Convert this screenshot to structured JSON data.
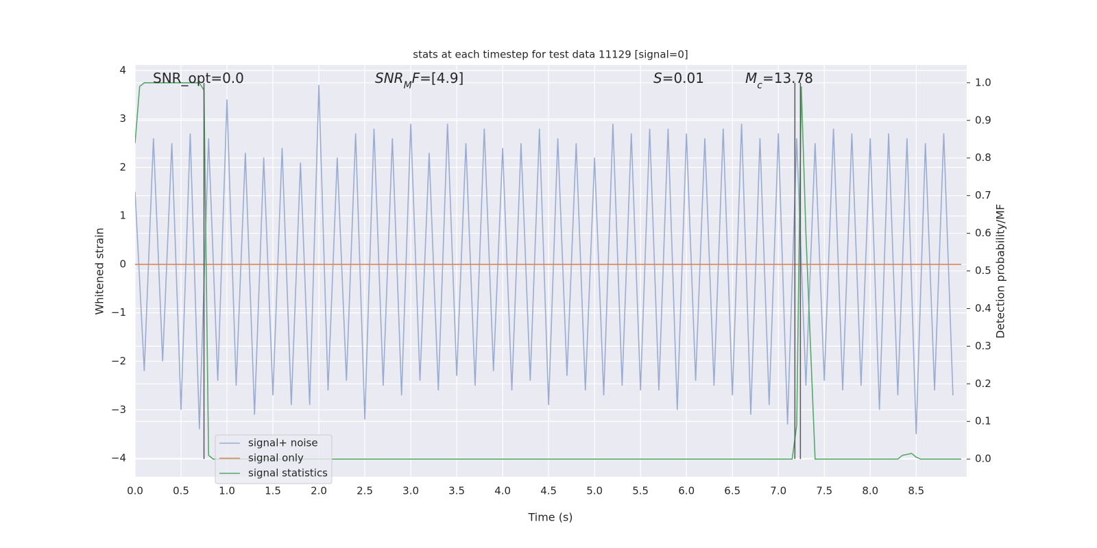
{
  "chart_data": {
    "type": "line",
    "title": "stats at each timestep for test data 11129 [signal=0]",
    "xlabel": "Time (s)",
    "ylabel": "Whitened strain",
    "y2label": "Detection probability/MF",
    "xlim": [
      0,
      9.05
    ],
    "ylim": [
      -4.38,
      4.11
    ],
    "y2lim": [
      -0.047,
      1.047
    ],
    "xticks": [
      {
        "value": 0,
        "label": "0.0"
      },
      0.5,
      {
        "value": 1,
        "label": "1.0"
      },
      1.5,
      {
        "value": 2,
        "label": "2.0"
      },
      2.5,
      {
        "value": 3,
        "label": "3.0"
      },
      3.5,
      {
        "value": 4,
        "label": "4.0"
      },
      4.5,
      {
        "value": 5,
        "label": "5.0"
      },
      5.5,
      {
        "value": 6,
        "label": "6.0"
      },
      6.5,
      {
        "value": 7,
        "label": "7.0"
      },
      7.5,
      {
        "value": 8,
        "label": "8.0"
      },
      8.5
    ],
    "yticks": [
      {
        "value": -4,
        "label": "−4"
      },
      {
        "value": -3,
        "label": "−3"
      },
      {
        "value": -2,
        "label": "−2"
      },
      {
        "value": -1,
        "label": "−1"
      },
      0,
      1,
      2,
      3,
      4
    ],
    "y2ticks": [
      {
        "value": 0,
        "label": "0.0"
      },
      0.1,
      0.2,
      0.3,
      0.4,
      0.5,
      0.6,
      0.7,
      0.8,
      0.9,
      {
        "value": 1,
        "label": "1.0"
      }
    ],
    "grid": true,
    "legend": "lower left",
    "series": [
      {
        "name": "signal+ noise",
        "color": "#9aacd1",
        "x": [
          0,
          0.1,
          0.2,
          0.3,
          0.4,
          0.5,
          0.6,
          0.7,
          0.8,
          0.9,
          1,
          1.1,
          1.2,
          1.3,
          1.4,
          1.5,
          1.6,
          1.7,
          1.8,
          1.9,
          2,
          2.1,
          2.2,
          2.3,
          2.4,
          2.5,
          2.6,
          2.7,
          2.8,
          2.9,
          3,
          3.1,
          3.2,
          3.3,
          3.4,
          3.5,
          3.6,
          3.7,
          3.8,
          3.9,
          4,
          4.1,
          4.2,
          4.3,
          4.4,
          4.5,
          4.6,
          4.7,
          4.8,
          4.9,
          5,
          5.1,
          5.2,
          5.3,
          5.4,
          5.5,
          5.6,
          5.7,
          5.8,
          5.9,
          6,
          6.1,
          6.2,
          6.3,
          6.4,
          6.5,
          6.6,
          6.7,
          6.8,
          6.9,
          7,
          7.1,
          7.2,
          7.3,
          7.4,
          7.5,
          7.6,
          7.7,
          7.8,
          7.9,
          8,
          8.1,
          8.2,
          8.3,
          8.4,
          8.5,
          8.6,
          8.7,
          8.8,
          8.9
        ],
        "values": [
          1.5,
          -2.2,
          2.6,
          -2,
          2.5,
          -3,
          2.7,
          -3.4,
          2.6,
          -2.4,
          3.4,
          -2.5,
          2.3,
          -3.1,
          2.2,
          -2.7,
          2.4,
          -2.9,
          2.1,
          -2.9,
          3.7,
          -2.6,
          2.2,
          -2.4,
          2.7,
          -3.2,
          2.8,
          -2.5,
          2.6,
          -2.7,
          2.9,
          -2.4,
          2.3,
          -2.6,
          2.9,
          -2.3,
          2.5,
          -2.5,
          2.8,
          -2.2,
          2.4,
          -2.6,
          2.5,
          -2.4,
          2.8,
          -2.9,
          2.6,
          -2.3,
          2.5,
          -2.6,
          2.2,
          -2.7,
          2.9,
          -2.5,
          2.7,
          -2.6,
          2.8,
          -2.6,
          2.8,
          -3,
          2.7,
          -2.4,
          2.6,
          -2.5,
          2.8,
          -2.7,
          2.9,
          -3.1,
          2.6,
          -2.9,
          2.7,
          -3.3,
          2.6,
          -2.5,
          2.5,
          -2.4,
          2.8,
          -2.6,
          2.7,
          -2.5,
          2.6,
          -3,
          2.7,
          -2.7,
          2.6,
          -3.5,
          2.5,
          -2.6,
          2.7,
          -2.7
        ]
      },
      {
        "name": "signal only",
        "color": "#dd8452",
        "x": [
          0,
          8.99
        ],
        "values": [
          0,
          0
        ]
      },
      {
        "name": "signal statistics",
        "color": "#55a868",
        "axis": "y2",
        "x": [
          0,
          0.05,
          0.1,
          0.6,
          0.7,
          0.75,
          0.8,
          0.85,
          7.15,
          7.2,
          7.25,
          7.3,
          7.4,
          8.3,
          8.35,
          8.45,
          8.5,
          8.55,
          8.99
        ],
        "values": [
          0.84,
          0.99,
          1.0,
          1.0,
          1.0,
          0.98,
          0.01,
          0.0,
          0.0,
          0.09,
          0.99,
          0.6,
          0.0,
          0.0,
          0.01,
          0.015,
          0.005,
          0.0,
          0.0
        ]
      }
    ],
    "vlines": {
      "x": [
        0.75,
        7.18,
        7.24
      ],
      "ymin": 0,
      "ymax": 1,
      "axis": "y2",
      "color": "#555555"
    },
    "annotations": [
      {
        "parts": [
          {
            "text": "SNR_opt=0.0",
            "style": "normal"
          }
        ]
      },
      {
        "parts": [
          {
            "text": "SNR",
            "style": "italic"
          },
          {
            "text": "M",
            "style": "sub"
          },
          {
            "text": "F",
            "style": "italic"
          },
          {
            "text": "=[4.9]",
            "style": "normal"
          }
        ]
      },
      {
        "parts": [
          {
            "text": "S",
            "style": "italic"
          },
          {
            "text": "=0.01",
            "style": "normal"
          }
        ]
      },
      {
        "parts": [
          {
            "text": "M",
            "style": "italic"
          },
          {
            "text": "c",
            "style": "sub"
          },
          {
            "text": "=13.78",
            "style": "normal"
          }
        ]
      }
    ]
  }
}
